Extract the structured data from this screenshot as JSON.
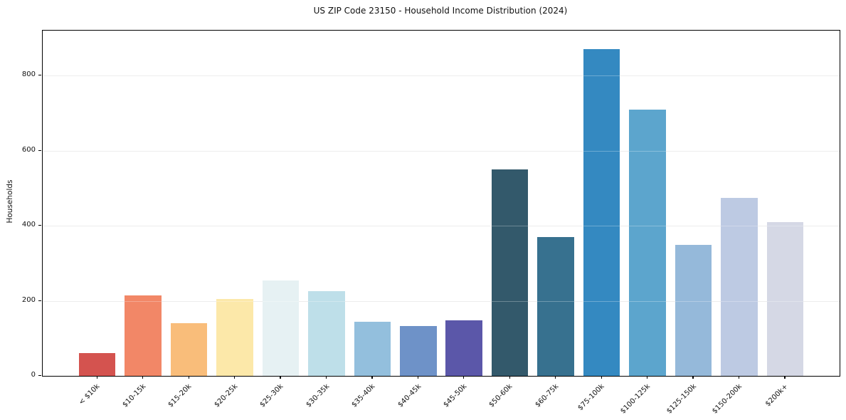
{
  "chart_data": {
    "type": "bar",
    "title": "US ZIP Code 23150 - Household Income Distribution (2024)",
    "xlabel": "",
    "ylabel": "Households",
    "categories": [
      "< $10k",
      "$10-15k",
      "$15-20k",
      "$20-25k",
      "$25-30k",
      "$30-35k",
      "$35-40k",
      "$40-45k",
      "$45-50k",
      "$50-60k",
      "$60-75k",
      "$75-100k",
      "$100-125k",
      "$125-150k",
      "$150-200k",
      "$200k+"
    ],
    "values": [
      60,
      215,
      140,
      205,
      255,
      225,
      145,
      133,
      148,
      550,
      370,
      870,
      710,
      350,
      475,
      410
    ],
    "bar_colors": [
      "#d4534f",
      "#f28767",
      "#f9bd7a",
      "#fce8a9",
      "#e6f1f3",
      "#bedfe9",
      "#93bfdd",
      "#6e92c8",
      "#5b57a9",
      "#33596b",
      "#37718f",
      "#3489c1",
      "#5ca5cd",
      "#95b9da",
      "#bdcae3",
      "#d5d8e5"
    ],
    "yticks": [
      0,
      200,
      400,
      600,
      800
    ],
    "ylim": [
      0,
      920
    ],
    "grid": "horizontal",
    "legend_position": "none",
    "x_tick_rotation_deg": 45,
    "spine_color": "#000000",
    "gridline_color": "#e6e6e6",
    "background_color": "#ffffff"
  }
}
